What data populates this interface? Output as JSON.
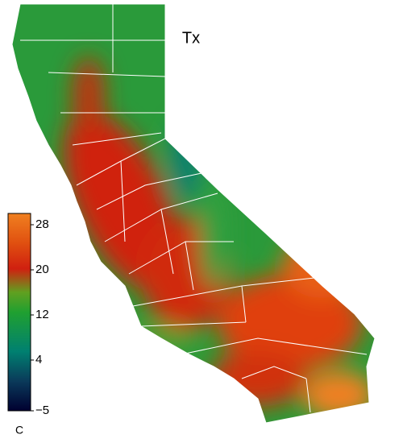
{
  "title": "Tx",
  "colorbar": {
    "unit": "C",
    "lim": [
      -5,
      30
    ],
    "ticks": [
      28,
      20,
      12,
      4,
      {
        "value": -5,
        "label": "−5"
      }
    ]
  }
}
